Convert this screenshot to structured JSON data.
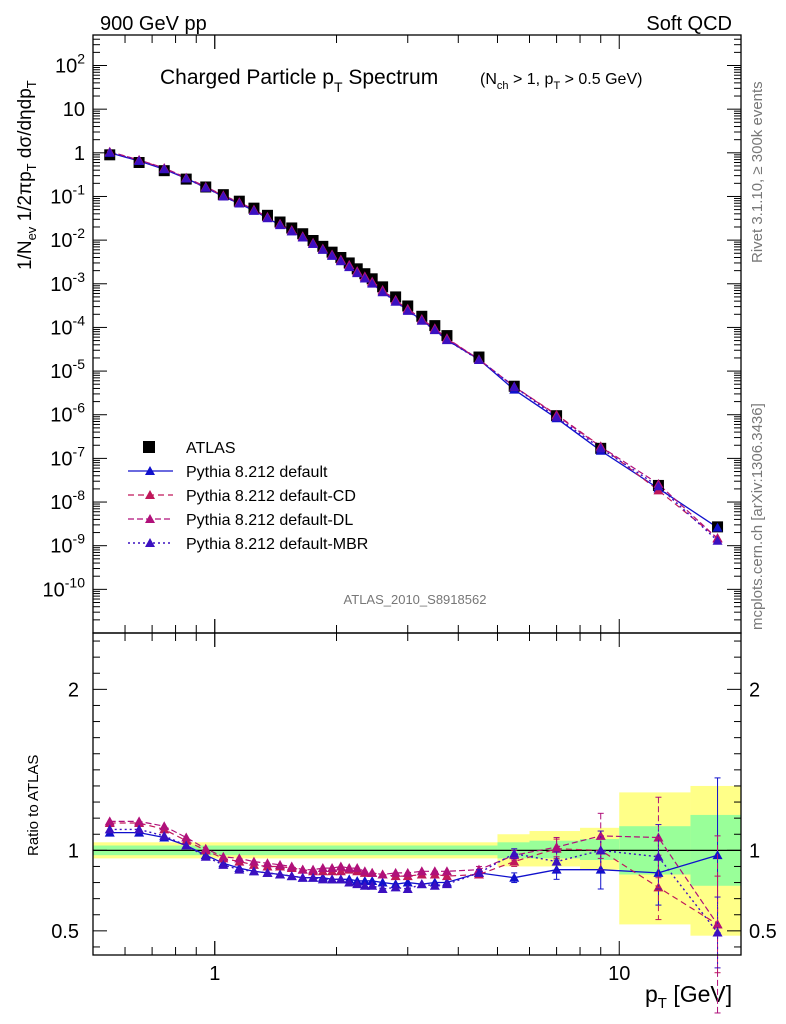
{
  "header": {
    "left": "900 GeV pp",
    "right": "Soft QCD"
  },
  "side": {
    "rivet": "Rivet 3.1.10, ≥ 300k events",
    "mcplots": "mcplots.cern.ch [arXiv:1306.3436]"
  },
  "main_title": {
    "base": "Charged Particle p",
    "sub": "T",
    "tail": " Spectrum",
    "cut": "(N_ch > 1, p_T > 0.5 GeV)"
  },
  "analysis_id": "ATLAS_2010_S8918562",
  "colors": {
    "atlas": "#000000",
    "default": "#1010cc",
    "cd": "#c0185a",
    "dl": "#b0107a",
    "mbr": "#3b10c0",
    "band_inner": "#99ff99",
    "band_outer": "#ffff88"
  },
  "legend": [
    "ATLAS",
    "Pythia 8.212 default",
    "Pythia 8.212 default-CD",
    "Pythia 8.212 default-DL",
    "Pythia 8.212 default-MBR"
  ],
  "chart_data": [
    {
      "type": "scatter",
      "title": "Charged Particle pT Spectrum",
      "xlabel": "p_T [GeV]",
      "ylabel": "1/N_ev 1/2πp_T dσ/dηdp_T",
      "xscale": "log",
      "yscale": "log",
      "xlim": [
        0.5,
        20
      ],
      "ylim": [
        1e-11,
        500
      ],
      "yticks": [
        "10^2",
        "10",
        "1",
        "10^-1",
        "10^-2",
        "10^-3",
        "10^-4",
        "10^-5",
        "10^-6",
        "10^-7",
        "10^-8",
        "10^-9",
        "10^-10"
      ],
      "xticks": [
        "1",
        "10"
      ],
      "x": [
        0.55,
        0.65,
        0.75,
        0.85,
        0.95,
        1.05,
        1.15,
        1.25,
        1.35,
        1.45,
        1.55,
        1.65,
        1.75,
        1.85,
        1.95,
        2.05,
        2.15,
        2.25,
        2.35,
        2.45,
        2.6,
        2.8,
        3.0,
        3.25,
        3.5,
        3.75,
        4.5,
        5.5,
        7.0,
        9.0,
        12.5,
        17.5
      ],
      "series": [
        {
          "name": "ATLAS",
          "values": [
            0.9,
            0.6,
            0.39,
            0.25,
            0.165,
            0.11,
            0.078,
            0.054,
            0.037,
            0.026,
            0.019,
            0.014,
            0.0098,
            0.0072,
            0.0053,
            0.004,
            0.003,
            0.0022,
            0.0017,
            0.0013,
            0.00085,
            0.0005,
            0.00031,
            0.00018,
            0.00011,
            6.5e-05,
            2.1e-05,
            4.5e-06,
            9.5e-07,
            1.7e-07,
            2.4e-08,
            2.7e-09
          ]
        },
        {
          "name": "Pythia 8.212 default",
          "values": [
            1.0,
            0.65,
            0.42,
            0.26,
            0.16,
            0.1,
            0.069,
            0.047,
            0.032,
            0.022,
            0.016,
            0.0115,
            0.0082,
            0.006,
            0.0044,
            0.0033,
            0.0025,
            0.0018,
            0.0014,
            0.00105,
            0.00067,
            0.00039,
            0.00025,
            0.000145,
            8.85e-05,
            5.16e-05,
            1.85e-05,
            3.75e-06,
            8.3e-07,
            1.5e-07,
            2.05e-08,
            2.6e-09
          ]
        },
        {
          "name": "Pythia 8.212 default-CD",
          "values": [
            1.05,
            0.68,
            0.44,
            0.265,
            0.163,
            0.104,
            0.072,
            0.049,
            0.0335,
            0.0233,
            0.0167,
            0.0121,
            0.0085,
            0.0063,
            0.0046,
            0.0035,
            0.0027,
            0.0019,
            0.00145,
            0.0011,
            0.0007,
            0.00042,
            0.000262,
            0.000153,
            9.35e-05,
            5.53e-05,
            1.82e-05,
            4.4e-06,
            1e-06,
            1.9e-07,
            1.85e-08,
            1.5e-09
          ]
        },
        {
          "name": "Pythia 8.212 default-DL",
          "values": [
            1.06,
            0.69,
            0.45,
            0.27,
            0.167,
            0.106,
            0.074,
            0.05,
            0.034,
            0.0237,
            0.0171,
            0.0123,
            0.0087,
            0.0064,
            0.0047,
            0.0036,
            0.0027,
            0.00195,
            0.00148,
            0.00112,
            0.00072,
            0.00043,
            0.000268,
            0.000156,
            9.55e-05,
            5.65e-05,
            1.86e-05,
            4.4e-06,
            9.7e-07,
            1.85e-07,
            2.6e-08,
            1.45e-09
          ]
        },
        {
          "name": "Pythia 8.212 default-MBR",
          "values": [
            1.02,
            0.66,
            0.425,
            0.258,
            0.158,
            0.1,
            0.069,
            0.047,
            0.032,
            0.0222,
            0.0159,
            0.0115,
            0.0082,
            0.006,
            0.0044,
            0.0033,
            0.0024,
            0.00175,
            0.00132,
            0.00101,
            0.00064,
            0.00039,
            0.00024,
            0.000142,
            8.65e-05,
            5.12e-05,
            1.8e-05,
            4.4e-06,
            8.8e-07,
            1.7e-07,
            2.3e-08,
            1.3e-09
          ]
        }
      ]
    },
    {
      "type": "line",
      "ylabel": "Ratio to ATLAS",
      "xlabel": "p_T [GeV]",
      "xscale": "log",
      "xlim": [
        0.5,
        20
      ],
      "ylim": [
        0.35,
        2.35
      ],
      "yticks": [
        "0.5",
        "1",
        "2"
      ],
      "x": [
        0.55,
        0.65,
        0.75,
        0.85,
        0.95,
        1.05,
        1.15,
        1.25,
        1.35,
        1.45,
        1.55,
        1.65,
        1.75,
        1.85,
        1.95,
        2.05,
        2.15,
        2.25,
        2.35,
        2.45,
        2.6,
        2.8,
        3.0,
        3.25,
        3.5,
        3.75,
        4.5,
        5.5,
        7.0,
        9.0,
        12.5,
        17.5
      ],
      "bands": {
        "edges": [
          0.5,
          5.0,
          6.0,
          8.0,
          10.0,
          15.0,
          20.0
        ],
        "inner": [
          [
            0.97,
            1.03
          ],
          [
            0.95,
            1.05
          ],
          [
            0.95,
            1.06
          ],
          [
            0.94,
            1.07
          ],
          [
            0.85,
            1.15
          ],
          [
            0.78,
            1.22
          ]
        ],
        "outer": [
          [
            0.95,
            1.05
          ],
          [
            0.9,
            1.1
          ],
          [
            0.9,
            1.12
          ],
          [
            0.88,
            1.14
          ],
          [
            0.54,
            1.36
          ],
          [
            0.47,
            1.4
          ]
        ]
      },
      "series": [
        {
          "name": "Pythia 8.212 default",
          "values": [
            1.11,
            1.11,
            1.08,
            1.03,
            0.97,
            0.92,
            0.89,
            0.87,
            0.86,
            0.85,
            0.84,
            0.83,
            0.83,
            0.83,
            0.82,
            0.82,
            0.82,
            0.81,
            0.81,
            0.81,
            0.8,
            0.79,
            0.8,
            0.79,
            0.8,
            0.8,
            0.86,
            0.83,
            0.88,
            0.88,
            0.86,
            0.97
          ],
          "errors": [
            0,
            0,
            0,
            0,
            0,
            0,
            0,
            0,
            0,
            0,
            0,
            0,
            0,
            0,
            0,
            0,
            0,
            0,
            0,
            0,
            0,
            0,
            0,
            0,
            0,
            0,
            0.02,
            0.03,
            0.06,
            0.12,
            0.2,
            0.48
          ]
        },
        {
          "name": "Pythia 8.212 default-CD",
          "values": [
            1.17,
            1.17,
            1.13,
            1.06,
            1.0,
            0.95,
            0.93,
            0.91,
            0.9,
            0.9,
            0.89,
            0.88,
            0.87,
            0.87,
            0.87,
            0.87,
            0.88,
            0.87,
            0.86,
            0.86,
            0.85,
            0.84,
            0.84,
            0.85,
            0.85,
            0.84,
            0.85,
            0.93,
            1.01,
            1.0,
            0.77,
            0.54
          ],
          "errors": [
            0,
            0,
            0,
            0,
            0,
            0,
            0,
            0,
            0,
            0,
            0,
            0,
            0,
            0,
            0,
            0,
            0,
            0,
            0,
            0,
            0,
            0,
            0,
            0,
            0,
            0,
            0.02,
            0.03,
            0.06,
            0.12,
            0.2,
            0.3
          ]
        },
        {
          "name": "Pythia 8.212 default-DL",
          "values": [
            1.18,
            1.18,
            1.15,
            1.08,
            1.01,
            0.96,
            0.95,
            0.93,
            0.92,
            0.91,
            0.9,
            0.88,
            0.88,
            0.89,
            0.89,
            0.9,
            0.89,
            0.89,
            0.87,
            0.86,
            0.85,
            0.86,
            0.86,
            0.87,
            0.87,
            0.87,
            0.88,
            0.97,
            1.02,
            1.09,
            1.08,
            0.54
          ],
          "errors": [
            0,
            0,
            0,
            0,
            0,
            0,
            0,
            0,
            0,
            0,
            0,
            0,
            0,
            0,
            0,
            0,
            0,
            0,
            0,
            0,
            0,
            0,
            0,
            0,
            0,
            0,
            0.02,
            0.03,
            0.06,
            0.14,
            0.25,
            0.55
          ]
        },
        {
          "name": "Pythia 8.212 default-MBR",
          "values": [
            1.13,
            1.13,
            1.09,
            1.03,
            0.96,
            0.91,
            0.88,
            0.87,
            0.86,
            0.85,
            0.84,
            0.83,
            0.83,
            0.82,
            0.82,
            0.82,
            0.8,
            0.79,
            0.78,
            0.78,
            0.76,
            0.77,
            0.76,
            0.79,
            0.78,
            0.79,
            0.86,
            0.98,
            0.93,
            1.0,
            0.96,
            0.49
          ],
          "errors": [
            0,
            0,
            0,
            0,
            0,
            0,
            0,
            0,
            0,
            0,
            0,
            0,
            0,
            0,
            0,
            0,
            0,
            0,
            0,
            0,
            0,
            0,
            0,
            0,
            0,
            0,
            0.02,
            0.03,
            0.06,
            0.12,
            0.2,
            0.22
          ]
        }
      ]
    }
  ]
}
